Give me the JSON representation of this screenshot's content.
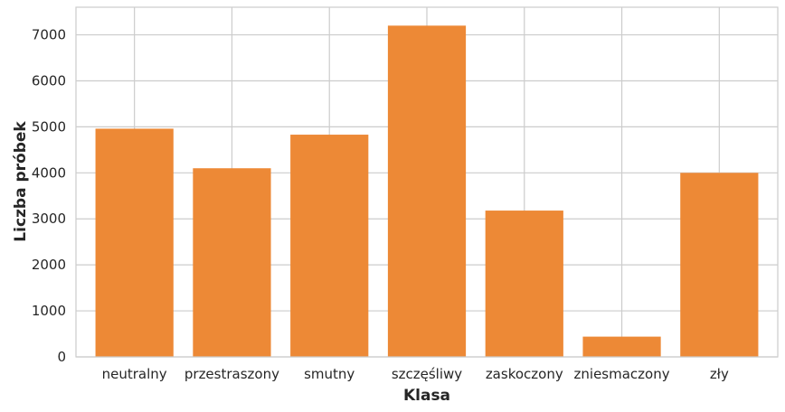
{
  "chart_data": {
    "type": "bar",
    "categories": [
      "neutralny",
      "przestraszony",
      "smutny",
      "szczęśliwy",
      "zaskoczony",
      "zniesmaczony",
      "zły"
    ],
    "values": [
      4960,
      4100,
      4830,
      7200,
      3180,
      440,
      4000
    ],
    "title": "",
    "xlabel": "Klasa",
    "ylabel": "Liczba próbek",
    "ylim": [
      0,
      7600
    ],
    "yticks": [
      0,
      1000,
      2000,
      3000,
      4000,
      5000,
      6000,
      7000
    ],
    "bar_color": "#ed8936",
    "grid": true
  }
}
